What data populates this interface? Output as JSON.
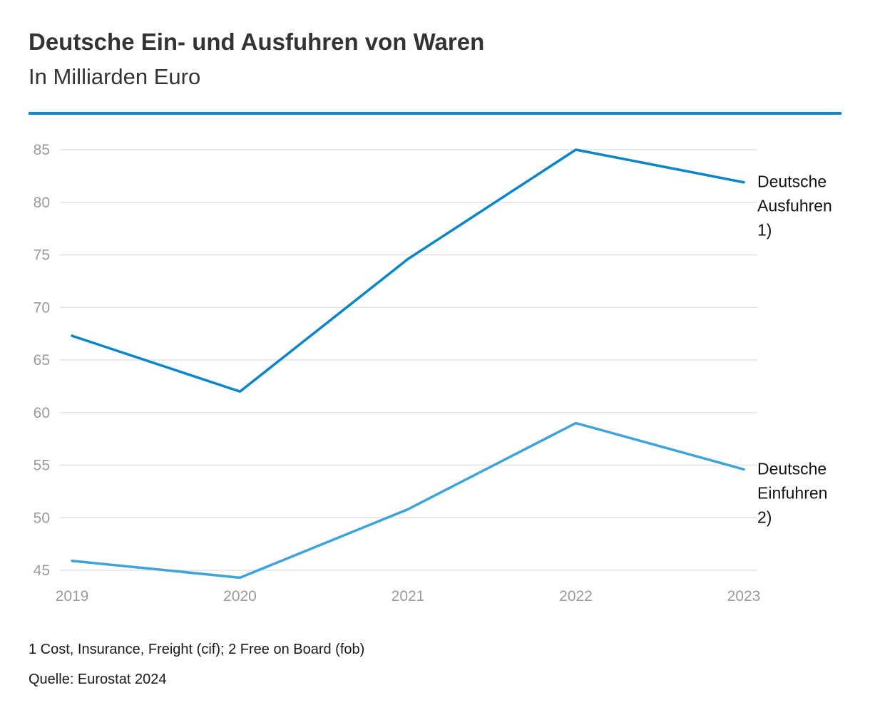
{
  "title": "Deutsche Ein- und Ausfuhren von Waren",
  "subtitle": "In Milliarden Euro",
  "footnote": "1 Cost, Insurance, Freight (cif); 2 Free on Board (fob)",
  "source": "Quelle: Eurostat 2024",
  "colors": {
    "accent": "#0a8ad0",
    "exports": "#0a86c8",
    "imports": "#3ea3d8",
    "grid": "#e2e2e2",
    "tick": "#9a9a9a"
  },
  "chart_data": {
    "type": "line",
    "x": [
      "2019",
      "2020",
      "2021",
      "2022",
      "2023"
    ],
    "ylim": [
      45,
      85
    ],
    "yticks": [
      45,
      50,
      55,
      60,
      65,
      70,
      75,
      80,
      85
    ],
    "grid": true,
    "legend": "direct labels at line ends",
    "series": [
      {
        "name": "Deutsche Ausfuhren 1)",
        "label_lines": [
          "Deutsche",
          "Ausfuhren",
          "1)"
        ],
        "values": [
          67.3,
          62.0,
          74.6,
          85.0,
          81.9
        ]
      },
      {
        "name": "Deutsche Einfuhren 2)",
        "label_lines": [
          "Deutsche",
          "Einfuhren",
          "2)"
        ],
        "values": [
          45.9,
          44.3,
          50.8,
          59.0,
          54.6
        ]
      }
    ]
  }
}
